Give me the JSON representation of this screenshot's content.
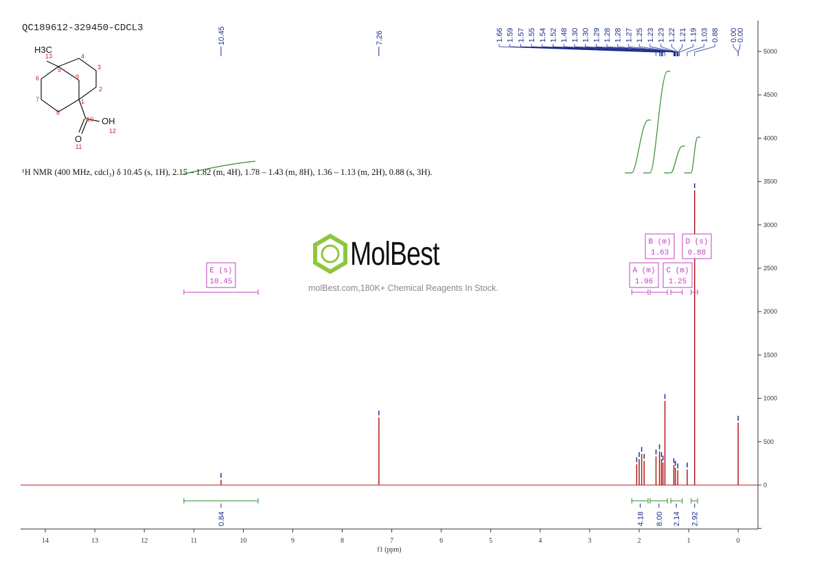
{
  "sample_title": "QC189612-329450-CDCL3",
  "nmr_description": "¹H NMR (400 MHz, cdcl₃) δ 10.45 (s, 1H), 2.15 – 1.82 (m, 4H), 1.78 – 1.43 (m, 8H), 1.36 – 1.13 (m, 2H), 0.88 (s, 3H).",
  "watermark": {
    "brand": "MolBest",
    "tagline": "molBest.com,180K+ Chemical Reagents In Stock."
  },
  "structure": {
    "methyl_label": "H3C",
    "oh_label": "OH",
    "oxygen_label": "O",
    "atom_numbers": [
      "1",
      "2",
      "3",
      "4",
      "5",
      "6",
      "7",
      "8",
      "9",
      "10",
      "11",
      "12",
      "13"
    ]
  },
  "colors": {
    "spectrum": "#b01818",
    "peak_labels": "#1a2b8c",
    "integral_curve": "#2e8b2e",
    "multiplet_box": "#c040c0",
    "atom_numbers": "#d02020"
  },
  "chart_data": {
    "type": "line",
    "xlabel": "f1 (ppm)",
    "xlim": [
      14.5,
      -0.4
    ],
    "ylim": [
      -500,
      5400
    ],
    "x_ticks": [
      "14",
      "13",
      "12",
      "11",
      "10",
      "9",
      "8",
      "7",
      "6",
      "5",
      "4",
      "3",
      "2",
      "1",
      "0"
    ],
    "y_ticks": [
      "0",
      "500",
      "1000",
      "1500",
      "2000",
      "2500",
      "3000",
      "3500",
      "4000",
      "4500",
      "5000"
    ],
    "peaks": [
      {
        "ppm": 10.45,
        "height": 60
      },
      {
        "ppm": 7.26,
        "height": 780
      },
      {
        "ppm": 2.05,
        "height": 240
      },
      {
        "ppm": 2.0,
        "height": 300
      },
      {
        "ppm": 1.95,
        "height": 360
      },
      {
        "ppm": 1.9,
        "height": 280
      },
      {
        "ppm": 1.66,
        "height": 330
      },
      {
        "ppm": 1.59,
        "height": 390
      },
      {
        "ppm": 1.55,
        "height": 300
      },
      {
        "ppm": 1.52,
        "height": 260
      },
      {
        "ppm": 1.48,
        "height": 970
      },
      {
        "ppm": 1.3,
        "height": 230
      },
      {
        "ppm": 1.27,
        "height": 200
      },
      {
        "ppm": 1.22,
        "height": 170
      },
      {
        "ppm": 1.03,
        "height": 180
      },
      {
        "ppm": 0.88,
        "height": 3400
      },
      {
        "ppm": 0.0,
        "height": 720
      }
    ],
    "peak_labels_left": [
      "10.45",
      "7.26"
    ],
    "peak_labels_group": [
      "1.66",
      "1.59",
      "1.57",
      "1.55",
      "1.54",
      "1.52",
      "1.48",
      "1.30",
      "1.30",
      "1.29",
      "1.28",
      "1.28",
      "1.27",
      "1.25",
      "1.23",
      "1.23",
      "1.22",
      "1.21",
      "1.19",
      "1.03",
      "0.88"
    ],
    "peak_labels_tms": [
      "0.00",
      "0.00"
    ],
    "multiplets": [
      {
        "letter": "E",
        "mult": "(s)",
        "shift": "10.45",
        "range": [
          11.2,
          9.7
        ]
      },
      {
        "letter": "A",
        "mult": "(m)",
        "shift": "1.96",
        "range": [
          2.15,
          1.82
        ]
      },
      {
        "letter": "B",
        "mult": "(m)",
        "shift": "1.63",
        "range": [
          1.78,
          1.43
        ]
      },
      {
        "letter": "C",
        "mult": "(m)",
        "shift": "1.25",
        "range": [
          1.36,
          1.13
        ]
      },
      {
        "letter": "D",
        "mult": "(s)",
        "shift": "0.88",
        "range": [
          0.95,
          0.82
        ]
      }
    ],
    "integrals": [
      {
        "ppm": 10.45,
        "range": [
          11.2,
          9.7
        ],
        "value": "0.84"
      },
      {
        "ppm": 1.98,
        "range": [
          2.15,
          1.82
        ],
        "value": "4.18"
      },
      {
        "ppm": 1.6,
        "range": [
          1.78,
          1.43
        ],
        "value": "8.00"
      },
      {
        "ppm": 1.25,
        "range": [
          1.36,
          1.13
        ],
        "value": "2.14"
      },
      {
        "ppm": 0.88,
        "range": [
          0.95,
          0.82
        ],
        "value": "2.92"
      }
    ]
  }
}
